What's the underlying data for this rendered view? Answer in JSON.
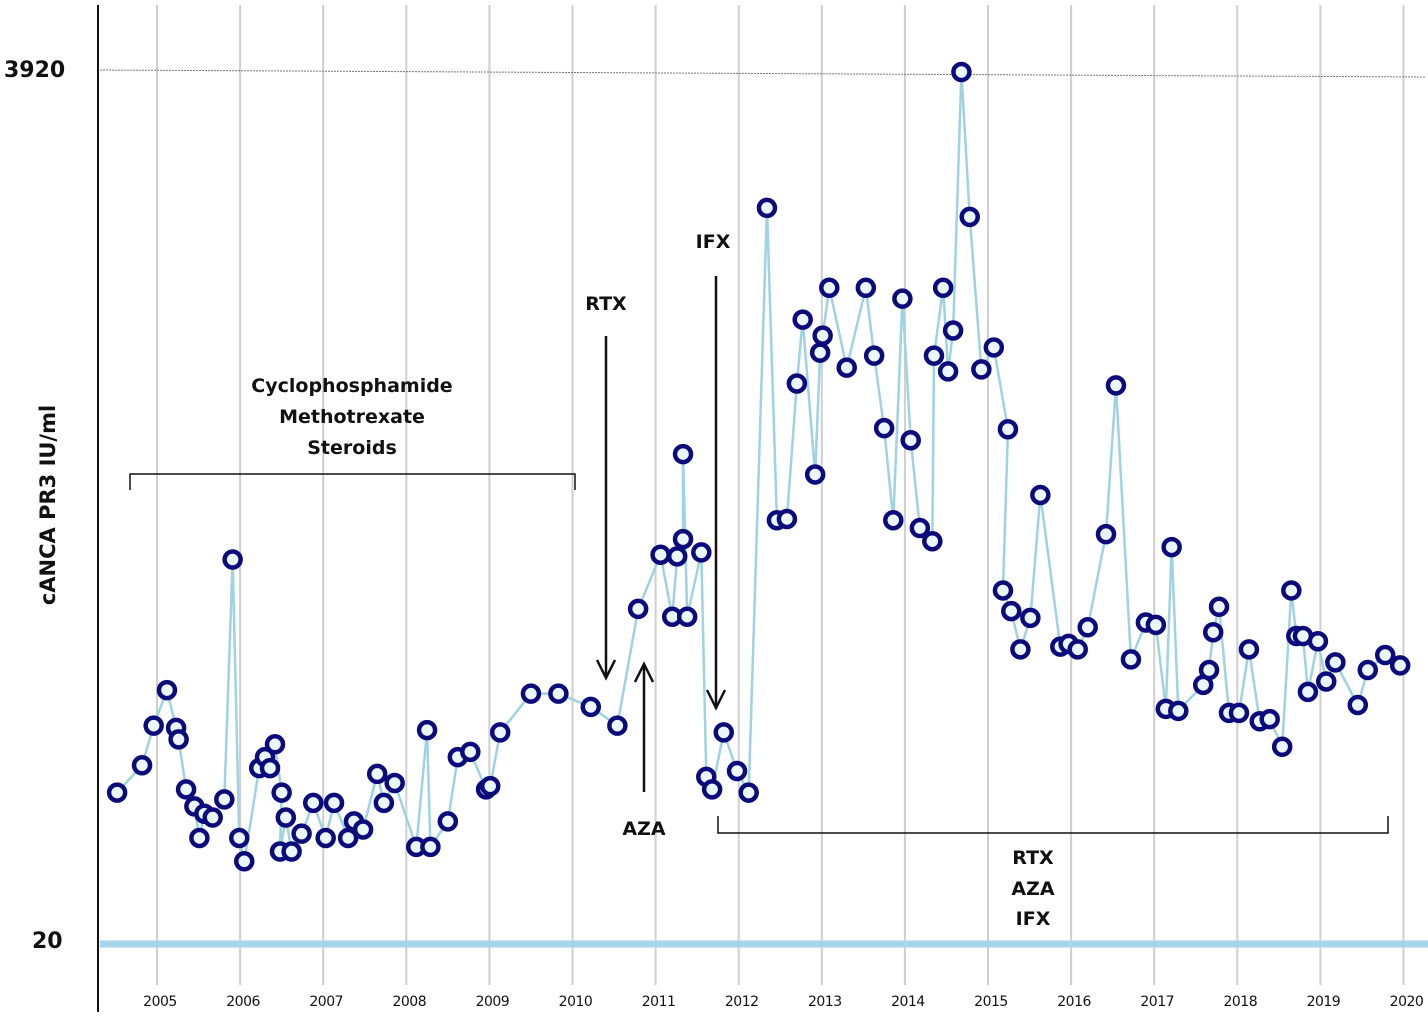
{
  "chart_data": {
    "type": "line",
    "title": "",
    "xlabel": "",
    "ylabel": "cANCA PR3 IU/ml",
    "y_scale": "log",
    "ylim": [
      20,
      3920
    ],
    "xlim": [
      2004.3,
      2020.0
    ],
    "y_tick_labels": [
      "3920",
      "20"
    ],
    "y_ticks": [
      3920,
      20
    ],
    "x_ticks": [
      2005,
      2006,
      2007,
      2008,
      2009,
      2010,
      2011,
      2012,
      2013,
      2014,
      2015,
      2016,
      2017,
      2018,
      2019,
      2020
    ],
    "x_tick_labels": [
      "2005",
      "2006",
      "2007",
      "2008",
      "2009",
      "2010",
      "2011",
      "2012",
      "2013",
      "2014",
      "2015",
      "2016",
      "2017",
      "2018",
      "2019",
      "2020"
    ],
    "grid": "vertical",
    "colors": {
      "line": "#9fd3e3",
      "marker": "#0b0b7c",
      "baseline": "#a6d6e8",
      "grid": "#cfcfcf"
    },
    "series": [
      {
        "x": [
          2004.52,
          2004.82,
          2004.96,
          2005.12,
          2005.23,
          2005.26,
          2005.35,
          2005.45,
          2005.51,
          2005.57,
          2005.67,
          2005.81,
          2005.91,
          2005.99,
          2006.05,
          2006.23,
          2006.3,
          2006.36,
          2006.42,
          2006.5,
          2006.48,
          2006.55,
          2006.62,
          2006.74,
          2006.88,
          2007.03,
          2007.13,
          2007.3,
          2007.37,
          2007.48,
          2007.65,
          2007.73,
          2007.86,
          2008.12,
          2008.25,
          2008.29,
          2008.5,
          2008.62,
          2008.77,
          2008.96,
          2009.01,
          2009.13,
          2009.5,
          2009.83,
          2010.22,
          2010.54,
          2010.79,
          2011.06,
          2011.2,
          2011.26,
          2011.33,
          2011.33,
          2011.38,
          2011.55,
          2011.61,
          2011.68,
          2011.82,
          2011.98,
          2012.12,
          2012.34,
          2012.46,
          2012.58,
          2012.7,
          2012.77,
          2012.92,
          2012.98,
          2013.01,
          2013.09,
          2013.3,
          2013.53,
          2013.63,
          2013.75,
          2013.86,
          2013.97,
          2014.07,
          2014.18,
          2014.33,
          2014.35,
          2014.46,
          2014.52,
          2014.58,
          2014.68,
          2014.78,
          2014.92,
          2015.07,
          2015.24,
          2015.18,
          2015.28,
          2015.39,
          2015.51,
          2015.63,
          2015.87,
          2015.97,
          2016.08,
          2016.2,
          2016.42,
          2016.54,
          2016.72,
          2016.9,
          2017.02,
          2017.14,
          2017.21,
          2017.29,
          2017.59,
          2017.66,
          2017.71,
          2017.78,
          2017.9,
          2018.02,
          2018.14,
          2018.27,
          2018.39,
          2018.54,
          2018.65,
          2018.71,
          2018.79,
          2018.85,
          2018.97,
          2019.07,
          2019.18,
          2019.45,
          2019.57,
          2019.78,
          2019.96
        ],
        "values": [
          50,
          59,
          75,
          93,
          74,
          69,
          51,
          46,
          38,
          44,
          43,
          48,
          205,
          38,
          33,
          58,
          62,
          58,
          67,
          50,
          35,
          43,
          35,
          39,
          47,
          38,
          47,
          38,
          42,
          40,
          56,
          47,
          53,
          36,
          73,
          36,
          42,
          62,
          64,
          51,
          52,
          72,
          91,
          91,
          84,
          75,
          152,
          211,
          145,
          209,
          232,
          388,
          145,
          214,
          55,
          51,
          72,
          57,
          50,
          1722,
          260,
          262,
          595,
          876,
          343,
          717,
          795,
          1062,
          655,
          1062,
          704,
          454,
          260,
          994,
          422,
          248,
          229,
          704,
          1062,
          640,
          820,
          3920,
          1631,
          648,
          740,
          451,
          170,
          150,
          119,
          144,
          303,
          121,
          123,
          119,
          136,
          239,
          588,
          112,
          140,
          138,
          83,
          221,
          82,
          96,
          105,
          132,
          154,
          81,
          81,
          119,
          77,
          78,
          66,
          170,
          129,
          129,
          92,
          125,
          98,
          110,
          85,
          105,
          115,
          108
        ]
      }
    ],
    "annotations": {
      "bracket_top": [
        "Cyclophosphamide",
        "Methotrexate",
        "Steroids"
      ],
      "arrow_rtx": "RTX",
      "arrow_aza": "AZA",
      "arrow_ifx": "IFX",
      "bracket_bottom": [
        "RTX",
        "AZA",
        "IFX"
      ]
    }
  }
}
